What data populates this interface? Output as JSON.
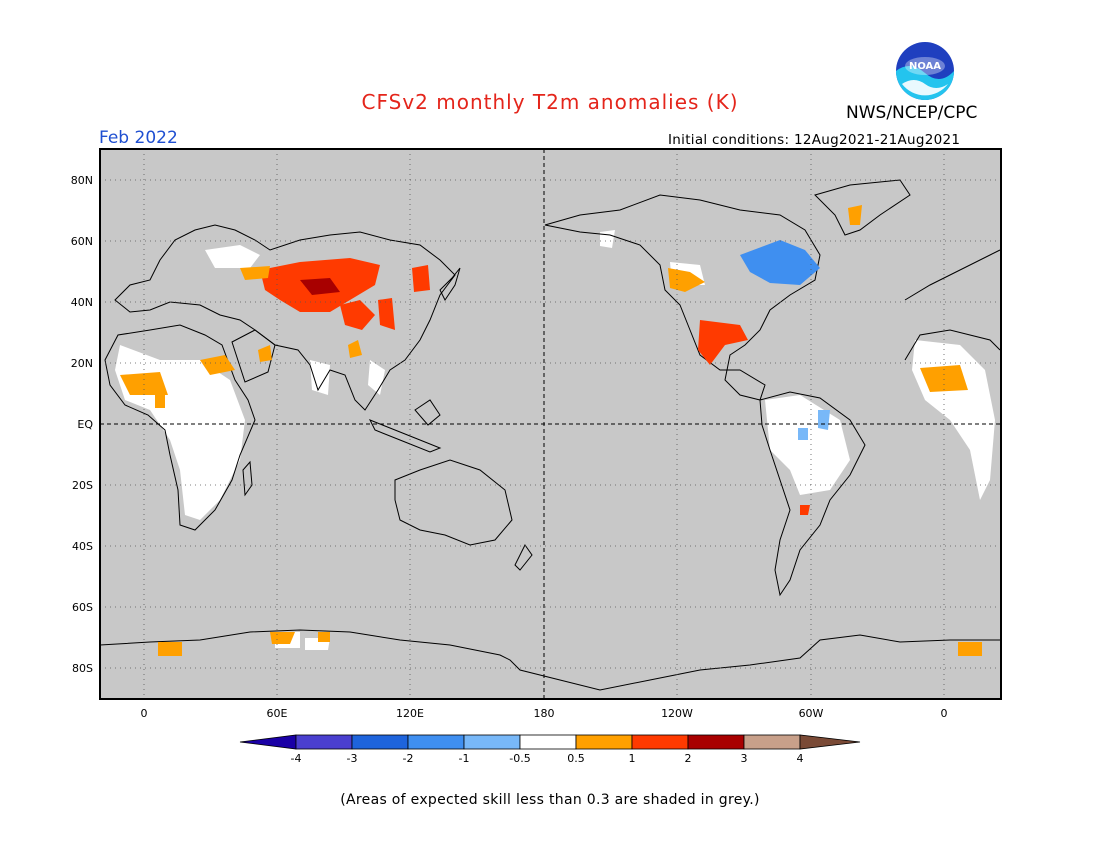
{
  "header": {
    "title": "CFSv2 monthly T2m anomalies (K)",
    "agency": "NWS/NCEP/CPC",
    "logo_text": "NOAA",
    "month": "Feb 2022",
    "initial_conditions": "Initial conditions: 12Aug2021-21Aug2021"
  },
  "map": {
    "lat_labels": [
      "80N",
      "60N",
      "40N",
      "20N",
      "EQ",
      "20S",
      "40S",
      "60S",
      "80S"
    ],
    "lon_labels": [
      "0",
      "60E",
      "120E",
      "180",
      "120W",
      "60W",
      "0"
    ],
    "background_color": "#c8c8c8",
    "unshaded_color": "#ffffff"
  },
  "legend": {
    "labels": [
      "-4",
      "-3",
      "-2",
      "-1",
      "-0.5",
      "0.5",
      "1",
      "2",
      "3",
      "4"
    ],
    "colors": [
      "#1a00a6",
      "#4a3fcf",
      "#1e64dc",
      "#3f8ff0",
      "#78b8f8",
      "#ffffff",
      "#ffa000",
      "#ff3a00",
      "#a80000",
      "#c8a08a",
      "#7a4a36"
    ]
  },
  "footnote": "(Areas of expected skill less than 0.3 are shaded in grey.)"
}
